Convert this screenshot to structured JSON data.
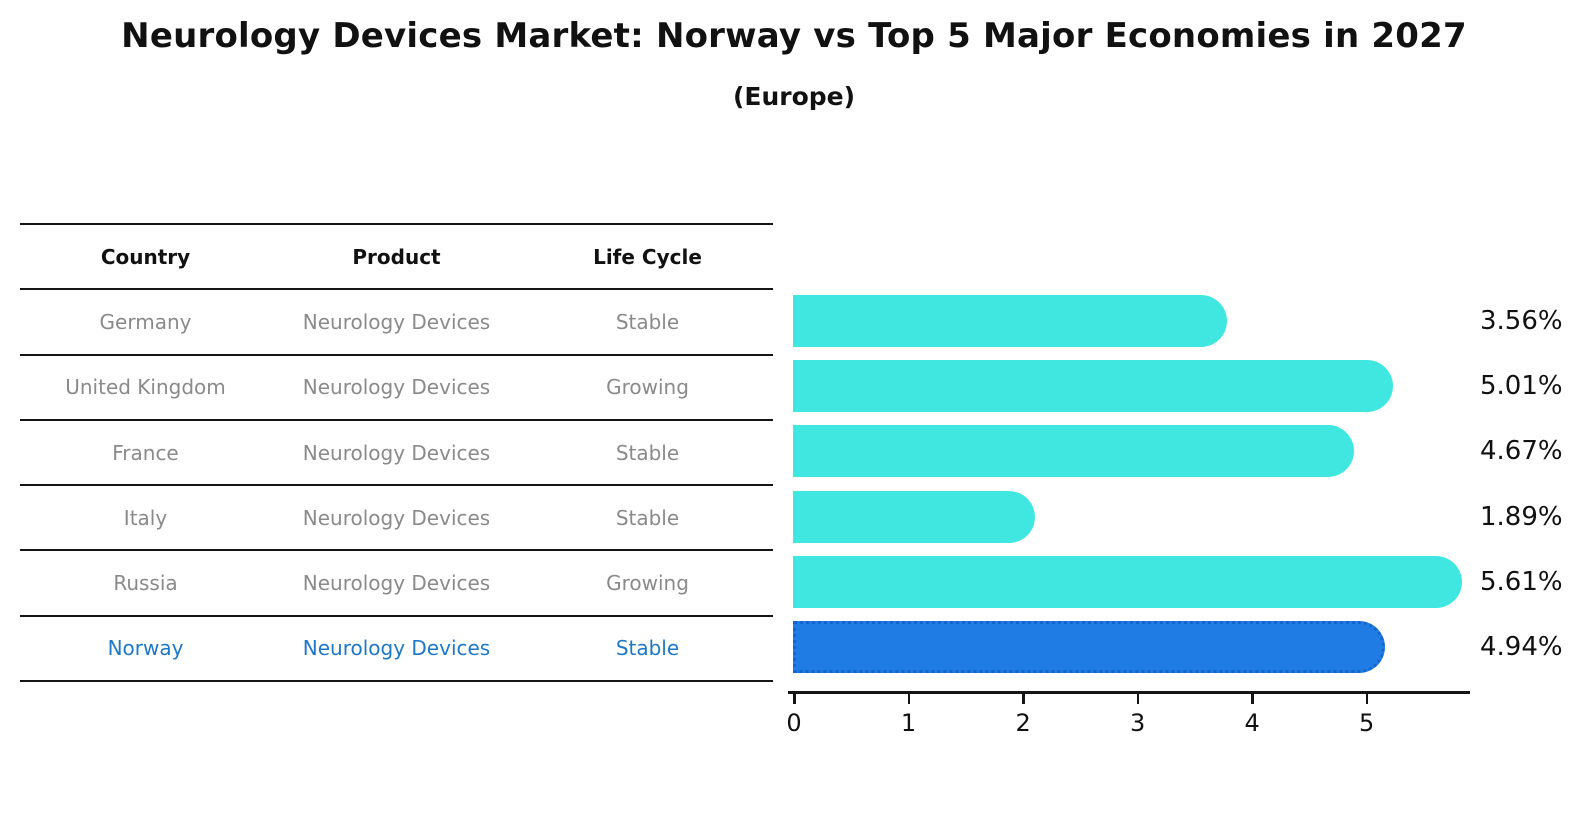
{
  "title": "Neurology Devices Market: Norway vs Top 5 Major Economies in 2027",
  "subtitle": "(Europe)",
  "table": {
    "headers": [
      "Country",
      "Product",
      "Life Cycle"
    ],
    "rows": [
      {
        "country": "Germany",
        "product": "Neurology Devices",
        "life_cycle": "Stable",
        "highlight": false
      },
      {
        "country": "United Kingdom",
        "product": "Neurology Devices",
        "life_cycle": "Growing",
        "highlight": false
      },
      {
        "country": "France",
        "product": "Neurology Devices",
        "life_cycle": "Stable",
        "highlight": false
      },
      {
        "country": "Italy",
        "product": "Neurology Devices",
        "life_cycle": "Stable",
        "highlight": false
      },
      {
        "country": "Russia",
        "product": "Neurology Devices",
        "life_cycle": "Growing",
        "highlight": false
      },
      {
        "country": "Norway",
        "product": "Neurology Devices",
        "life_cycle": "Stable",
        "highlight": true
      }
    ]
  },
  "chart_data": {
    "type": "bar",
    "orientation": "horizontal",
    "title": "Neurology Devices Market: Norway vs Top 5 Major Economies in 2027 (Europe)",
    "categories": [
      "Germany",
      "United Kingdom",
      "France",
      "Italy",
      "Russia",
      "Norway"
    ],
    "values": [
      3.56,
      5.01,
      4.67,
      1.89,
      5.61,
      4.94
    ],
    "value_labels": [
      "3.56%",
      "5.01%",
      "4.67%",
      "1.89%",
      "5.61%",
      "4.94%"
    ],
    "x_ticks": [
      "0",
      "1",
      "2",
      "3",
      "4",
      "5"
    ],
    "xlim": [
      0,
      5.91
    ],
    "grid": "off",
    "legend": "none",
    "bar_color": "#40E7E0",
    "highlight_bar_color": "#1F7CE4",
    "highlight_bar_border_color": "#1566CC",
    "highlight_index": 5
  },
  "colors": {
    "text": "#111111",
    "muted_text": "#8a8a8a",
    "highlight_text": "#1E78C8",
    "line": "#151515"
  }
}
